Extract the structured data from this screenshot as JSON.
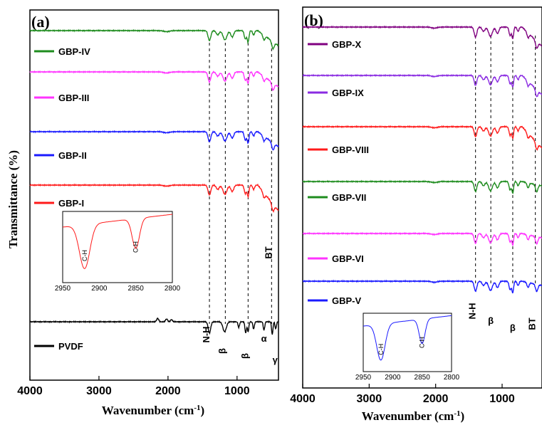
{
  "chart_data": [
    {
      "type": "line",
      "panel_label": "(a)",
      "xlabel": "Wavenumber (cm",
      "xlabel_sup": "-1",
      "xlabel_end": ")",
      "ylabel": "Transmittance (%)",
      "xlim": [
        4000,
        400
      ],
      "x_ticks": [
        4000,
        3000,
        2000,
        1000
      ],
      "x_tick_labels": [
        "4000",
        "3000",
        "2000",
        "1000"
      ],
      "series": [
        {
          "name": "GBP-IV",
          "color": "#1e8c1e"
        },
        {
          "name": "GBP-III",
          "color": "#ff33ff"
        },
        {
          "name": "GBP-II",
          "color": "#1a1aff"
        },
        {
          "name": "GBP-I",
          "color": "#ff1a1a"
        },
        {
          "name": "PVDF",
          "color": "#000000"
        }
      ],
      "peak_markers": [
        1400,
        1170,
        840,
        500
      ],
      "annotations": [
        {
          "text": "N-H",
          "x": 1400
        },
        {
          "text": "β",
          "x": 1170
        },
        {
          "text": "β",
          "x": 840
        },
        {
          "text": "α",
          "x": 610
        },
        {
          "text": "γ",
          "x": 450
        },
        {
          "text": "BT",
          "x": 500
        }
      ],
      "inset": {
        "color": "#ff1a1a",
        "xlim": [
          2950,
          2800
        ],
        "x_ticks": [
          2950,
          2900,
          2850,
          2800
        ],
        "x_tick_labels": [
          "2950",
          "2900",
          "2850",
          "2800"
        ],
        "peaks": [
          {
            "text": "C-H",
            "x": 2920
          },
          {
            "text": "C-H",
            "x": 2850
          }
        ]
      }
    },
    {
      "type": "line",
      "panel_label": "(b)",
      "xlabel": "Wavenumber (cm",
      "xlabel_sup": "-1",
      "xlabel_end": ")",
      "xlim": [
        4000,
        400
      ],
      "x_ticks": [
        4000,
        3000,
        2000,
        1000
      ],
      "x_tick_labels": [
        "4000",
        "3000",
        "2000",
        "1000"
      ],
      "series": [
        {
          "name": "GBP-X",
          "color": "#800080"
        },
        {
          "name": "GBP-IX",
          "color": "#8a2be2"
        },
        {
          "name": "GBP-VIII",
          "color": "#ff1a1a"
        },
        {
          "name": "GBP-VII",
          "color": "#1e8c1e"
        },
        {
          "name": "GBP-VI",
          "color": "#ff33ff"
        },
        {
          "name": "GBP-V",
          "color": "#1a1aff"
        }
      ],
      "peak_markers": [
        1400,
        1170,
        840,
        500
      ],
      "annotations": [
        {
          "text": "N-H",
          "x": 1400
        },
        {
          "text": "β",
          "x": 1170
        },
        {
          "text": "β",
          "x": 840
        },
        {
          "text": "BT",
          "x": 500
        }
      ],
      "inset": {
        "color": "#1a1aff",
        "xlim": [
          2950,
          2800
        ],
        "x_ticks": [
          2950,
          2900,
          2850,
          2800
        ],
        "x_tick_labels": [
          "2950",
          "2900",
          "2850",
          "2800"
        ],
        "peaks": [
          {
            "text": "C-H",
            "x": 2920
          },
          {
            "text": "C-H",
            "x": 2850
          }
        ]
      }
    }
  ]
}
